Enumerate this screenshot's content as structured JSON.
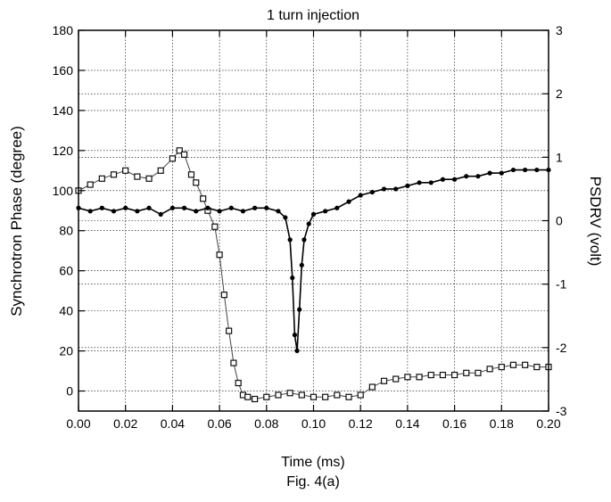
{
  "chart_data": {
    "type": "scatter",
    "title": "1 turn injection",
    "xlabel": "Time (ms)",
    "ylabel": "Synchrotron Phase (degree)",
    "y2label": "PSDRV (volt)",
    "caption": "Fig. 4(a)",
    "xlim": [
      0.0,
      0.2
    ],
    "ylim": [
      -10,
      180
    ],
    "y2lim": [
      -3,
      3
    ],
    "x_ticks": [
      "0.00",
      "0.02",
      "0.04",
      "0.06",
      "0.08",
      "0.10",
      "0.12",
      "0.14",
      "0.16",
      "0.18",
      "0.20"
    ],
    "y_ticks": [
      "0",
      "20",
      "40",
      "60",
      "80",
      "100",
      "120",
      "140",
      "160",
      "180"
    ],
    "y2_ticks": [
      "-3",
      "-2",
      "-1",
      "0",
      "1",
      "2",
      "3"
    ],
    "grid": true,
    "series": [
      {
        "axis": "left",
        "marker": "open-square",
        "x": [
          0.0,
          0.005,
          0.01,
          0.015,
          0.02,
          0.025,
          0.03,
          0.035,
          0.04,
          0.043,
          0.045,
          0.048,
          0.05,
          0.053,
          0.055,
          0.058,
          0.06,
          0.062,
          0.064,
          0.066,
          0.068,
          0.07,
          0.072,
          0.075,
          0.08,
          0.085,
          0.09,
          0.095,
          0.1,
          0.105,
          0.11,
          0.115,
          0.12,
          0.125,
          0.13,
          0.135,
          0.14,
          0.145,
          0.15,
          0.155,
          0.16,
          0.165,
          0.17,
          0.175,
          0.18,
          0.185,
          0.19,
          0.195,
          0.2
        ],
        "y": [
          100,
          103,
          106,
          108,
          110,
          107,
          106,
          110,
          116,
          120,
          118,
          108,
          104,
          96,
          90,
          82,
          68,
          48,
          30,
          14,
          4,
          -2,
          -3,
          -4,
          -3,
          -2,
          -1,
          -2,
          -3,
          -3,
          -2,
          -3,
          -2,
          2,
          5,
          6,
          7,
          7,
          8,
          8,
          8,
          9,
          9,
          11,
          12,
          13,
          13,
          12,
          12
        ]
      },
      {
        "axis": "right",
        "marker": "filled-circle",
        "x": [
          0.0,
          0.005,
          0.01,
          0.015,
          0.02,
          0.025,
          0.03,
          0.035,
          0.04,
          0.045,
          0.05,
          0.055,
          0.06,
          0.065,
          0.07,
          0.075,
          0.08,
          0.085,
          0.088,
          0.09,
          0.091,
          0.092,
          0.093,
          0.094,
          0.095,
          0.096,
          0.098,
          0.1,
          0.105,
          0.11,
          0.115,
          0.12,
          0.125,
          0.13,
          0.135,
          0.14,
          0.145,
          0.15,
          0.155,
          0.16,
          0.165,
          0.17,
          0.175,
          0.18,
          0.185,
          0.19,
          0.195,
          0.2
        ],
        "y": [
          0.2,
          0.15,
          0.2,
          0.15,
          0.2,
          0.15,
          0.2,
          0.1,
          0.2,
          0.2,
          0.15,
          0.2,
          0.15,
          0.2,
          0.15,
          0.2,
          0.2,
          0.15,
          0.05,
          -0.3,
          -0.9,
          -1.8,
          -2.05,
          -1.4,
          -0.7,
          -0.3,
          -0.05,
          0.1,
          0.15,
          0.2,
          0.3,
          0.4,
          0.45,
          0.5,
          0.5,
          0.55,
          0.6,
          0.6,
          0.65,
          0.65,
          0.7,
          0.7,
          0.75,
          0.75,
          0.8,
          0.8,
          0.8,
          0.8
        ]
      }
    ]
  }
}
